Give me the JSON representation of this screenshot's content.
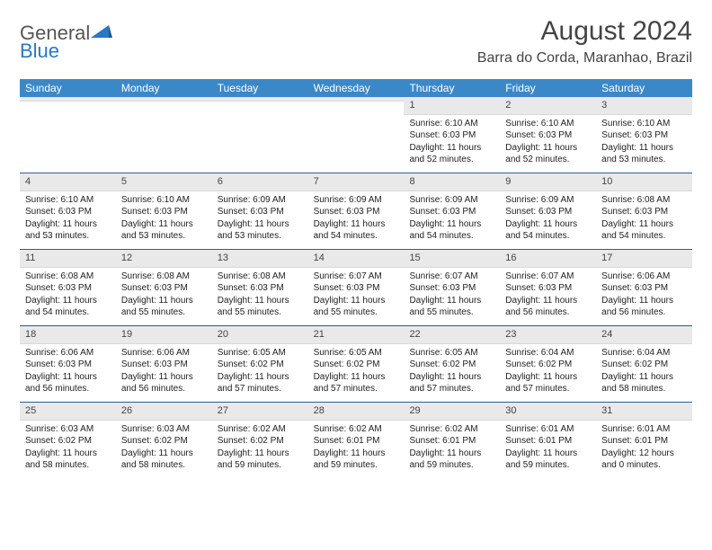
{
  "logo": {
    "general": "General",
    "blue": "Blue"
  },
  "title": "August 2024",
  "location": "Barra do Corda, Maranhao, Brazil",
  "colors": {
    "header_bg": "#3b88c9",
    "header_text": "#ffffff",
    "row_border": "#2a5f8e",
    "daynum_bg": "#e9e9e9",
    "logo_blue": "#2a77c4",
    "logo_gray": "#555555",
    "text": "#333333",
    "background": "#ffffff"
  },
  "typography": {
    "title_fontsize": 30,
    "location_fontsize": 16,
    "dayheader_fontsize": 12,
    "body_fontsize": 10,
    "font_family": "Arial"
  },
  "layout": {
    "columns": 7,
    "rows": 5,
    "cell_min_height": 84
  },
  "day_labels": [
    "Sunday",
    "Monday",
    "Tuesday",
    "Wednesday",
    "Thursday",
    "Friday",
    "Saturday"
  ],
  "weeks": [
    [
      {
        "n": "",
        "sunrise": "",
        "sunset": "",
        "daylight": ""
      },
      {
        "n": "",
        "sunrise": "",
        "sunset": "",
        "daylight": ""
      },
      {
        "n": "",
        "sunrise": "",
        "sunset": "",
        "daylight": ""
      },
      {
        "n": "",
        "sunrise": "",
        "sunset": "",
        "daylight": ""
      },
      {
        "n": "1",
        "sunrise": "Sunrise: 6:10 AM",
        "sunset": "Sunset: 6:03 PM",
        "daylight": "Daylight: 11 hours and 52 minutes."
      },
      {
        "n": "2",
        "sunrise": "Sunrise: 6:10 AM",
        "sunset": "Sunset: 6:03 PM",
        "daylight": "Daylight: 11 hours and 52 minutes."
      },
      {
        "n": "3",
        "sunrise": "Sunrise: 6:10 AM",
        "sunset": "Sunset: 6:03 PM",
        "daylight": "Daylight: 11 hours and 53 minutes."
      }
    ],
    [
      {
        "n": "4",
        "sunrise": "Sunrise: 6:10 AM",
        "sunset": "Sunset: 6:03 PM",
        "daylight": "Daylight: 11 hours and 53 minutes."
      },
      {
        "n": "5",
        "sunrise": "Sunrise: 6:10 AM",
        "sunset": "Sunset: 6:03 PM",
        "daylight": "Daylight: 11 hours and 53 minutes."
      },
      {
        "n": "6",
        "sunrise": "Sunrise: 6:09 AM",
        "sunset": "Sunset: 6:03 PM",
        "daylight": "Daylight: 11 hours and 53 minutes."
      },
      {
        "n": "7",
        "sunrise": "Sunrise: 6:09 AM",
        "sunset": "Sunset: 6:03 PM",
        "daylight": "Daylight: 11 hours and 54 minutes."
      },
      {
        "n": "8",
        "sunrise": "Sunrise: 6:09 AM",
        "sunset": "Sunset: 6:03 PM",
        "daylight": "Daylight: 11 hours and 54 minutes."
      },
      {
        "n": "9",
        "sunrise": "Sunrise: 6:09 AM",
        "sunset": "Sunset: 6:03 PM",
        "daylight": "Daylight: 11 hours and 54 minutes."
      },
      {
        "n": "10",
        "sunrise": "Sunrise: 6:08 AM",
        "sunset": "Sunset: 6:03 PM",
        "daylight": "Daylight: 11 hours and 54 minutes."
      }
    ],
    [
      {
        "n": "11",
        "sunrise": "Sunrise: 6:08 AM",
        "sunset": "Sunset: 6:03 PM",
        "daylight": "Daylight: 11 hours and 54 minutes."
      },
      {
        "n": "12",
        "sunrise": "Sunrise: 6:08 AM",
        "sunset": "Sunset: 6:03 PM",
        "daylight": "Daylight: 11 hours and 55 minutes."
      },
      {
        "n": "13",
        "sunrise": "Sunrise: 6:08 AM",
        "sunset": "Sunset: 6:03 PM",
        "daylight": "Daylight: 11 hours and 55 minutes."
      },
      {
        "n": "14",
        "sunrise": "Sunrise: 6:07 AM",
        "sunset": "Sunset: 6:03 PM",
        "daylight": "Daylight: 11 hours and 55 minutes."
      },
      {
        "n": "15",
        "sunrise": "Sunrise: 6:07 AM",
        "sunset": "Sunset: 6:03 PM",
        "daylight": "Daylight: 11 hours and 55 minutes."
      },
      {
        "n": "16",
        "sunrise": "Sunrise: 6:07 AM",
        "sunset": "Sunset: 6:03 PM",
        "daylight": "Daylight: 11 hours and 56 minutes."
      },
      {
        "n": "17",
        "sunrise": "Sunrise: 6:06 AM",
        "sunset": "Sunset: 6:03 PM",
        "daylight": "Daylight: 11 hours and 56 minutes."
      }
    ],
    [
      {
        "n": "18",
        "sunrise": "Sunrise: 6:06 AM",
        "sunset": "Sunset: 6:03 PM",
        "daylight": "Daylight: 11 hours and 56 minutes."
      },
      {
        "n": "19",
        "sunrise": "Sunrise: 6:06 AM",
        "sunset": "Sunset: 6:03 PM",
        "daylight": "Daylight: 11 hours and 56 minutes."
      },
      {
        "n": "20",
        "sunrise": "Sunrise: 6:05 AM",
        "sunset": "Sunset: 6:02 PM",
        "daylight": "Daylight: 11 hours and 57 minutes."
      },
      {
        "n": "21",
        "sunrise": "Sunrise: 6:05 AM",
        "sunset": "Sunset: 6:02 PM",
        "daylight": "Daylight: 11 hours and 57 minutes."
      },
      {
        "n": "22",
        "sunrise": "Sunrise: 6:05 AM",
        "sunset": "Sunset: 6:02 PM",
        "daylight": "Daylight: 11 hours and 57 minutes."
      },
      {
        "n": "23",
        "sunrise": "Sunrise: 6:04 AM",
        "sunset": "Sunset: 6:02 PM",
        "daylight": "Daylight: 11 hours and 57 minutes."
      },
      {
        "n": "24",
        "sunrise": "Sunrise: 6:04 AM",
        "sunset": "Sunset: 6:02 PM",
        "daylight": "Daylight: 11 hours and 58 minutes."
      }
    ],
    [
      {
        "n": "25",
        "sunrise": "Sunrise: 6:03 AM",
        "sunset": "Sunset: 6:02 PM",
        "daylight": "Daylight: 11 hours and 58 minutes."
      },
      {
        "n": "26",
        "sunrise": "Sunrise: 6:03 AM",
        "sunset": "Sunset: 6:02 PM",
        "daylight": "Daylight: 11 hours and 58 minutes."
      },
      {
        "n": "27",
        "sunrise": "Sunrise: 6:02 AM",
        "sunset": "Sunset: 6:02 PM",
        "daylight": "Daylight: 11 hours and 59 minutes."
      },
      {
        "n": "28",
        "sunrise": "Sunrise: 6:02 AM",
        "sunset": "Sunset: 6:01 PM",
        "daylight": "Daylight: 11 hours and 59 minutes."
      },
      {
        "n": "29",
        "sunrise": "Sunrise: 6:02 AM",
        "sunset": "Sunset: 6:01 PM",
        "daylight": "Daylight: 11 hours and 59 minutes."
      },
      {
        "n": "30",
        "sunrise": "Sunrise: 6:01 AM",
        "sunset": "Sunset: 6:01 PM",
        "daylight": "Daylight: 11 hours and 59 minutes."
      },
      {
        "n": "31",
        "sunrise": "Sunrise: 6:01 AM",
        "sunset": "Sunset: 6:01 PM",
        "daylight": "Daylight: 12 hours and 0 minutes."
      }
    ]
  ]
}
